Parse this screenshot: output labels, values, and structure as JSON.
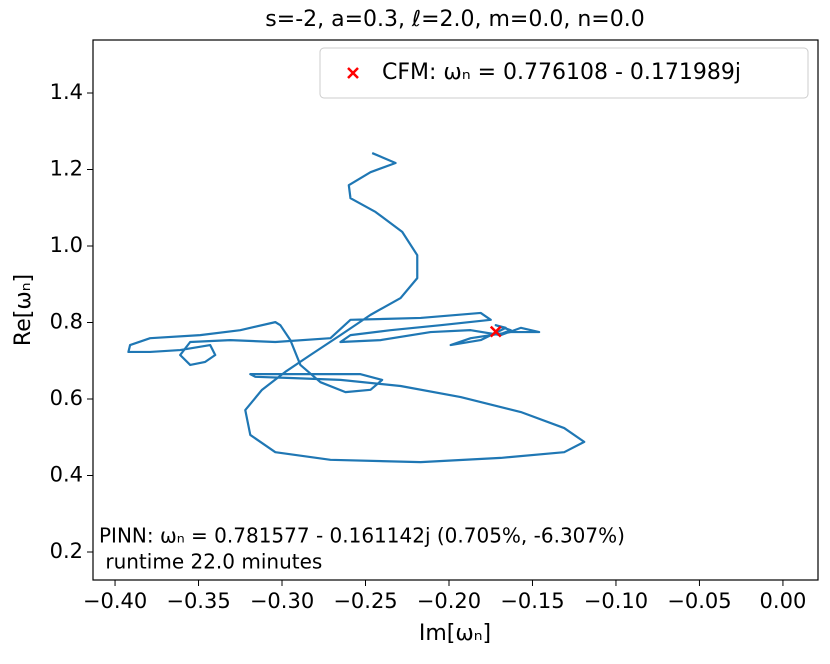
{
  "chart_data": {
    "type": "line",
    "title": "s=-2, a=0.3, ℓ=2.0, m=0.0, n=0.0",
    "x_label": "Im[ωₙ]",
    "y_label": "Re[ωₙ]",
    "xlim": [
      -0.4132,
      0.021
    ],
    "ylim": [
      0.1268,
      1.5386
    ],
    "xticks": [
      {
        "value": -0.4,
        "label": "−0.40"
      },
      {
        "value": -0.35,
        "label": "−0.35"
      },
      {
        "value": -0.3,
        "label": "−0.30"
      },
      {
        "value": -0.25,
        "label": "−0.25"
      },
      {
        "value": -0.2,
        "label": "−0.20"
      },
      {
        "value": -0.15,
        "label": "−0.15"
      },
      {
        "value": -0.1,
        "label": "−0.10"
      },
      {
        "value": -0.05,
        "label": "−0.05"
      },
      {
        "value": 0,
        "label": "0.00"
      }
    ],
    "yticks": [
      0.2,
      0.4,
      0.6,
      0.8,
      {
        "value": 1,
        "label": "1.0"
      },
      1.2,
      1.4
    ],
    "legend_position": "upper right",
    "series": [
      {
        "type": "line",
        "color": "#1f77b4",
        "x": [
          -0.246,
          -0.232,
          -0.247,
          -0.26,
          -0.259,
          -0.244,
          -0.228,
          -0.219,
          -0.219,
          -0.229,
          -0.247,
          -0.265,
          -0.283,
          -0.298,
          -0.312,
          -0.322,
          -0.319,
          -0.304,
          -0.271,
          -0.217,
          -0.169,
          -0.131,
          -0.119,
          -0.131,
          -0.157,
          -0.193,
          -0.229,
          -0.265,
          -0.295,
          -0.316,
          -0.319,
          -0.289,
          -0.253,
          -0.24,
          -0.247,
          -0.262,
          -0.277,
          -0.289,
          -0.295,
          -0.301,
          -0.304,
          -0.325,
          -0.349,
          -0.379,
          -0.391,
          -0.392,
          -0.379,
          -0.361,
          -0.343,
          -0.34,
          -0.346,
          -0.355,
          -0.361,
          -0.355,
          -0.331,
          -0.304,
          -0.271,
          -0.259,
          -0.217,
          -0.181,
          -0.175,
          -0.205,
          -0.235,
          -0.259,
          -0.265,
          -0.241,
          -0.211,
          -0.187,
          -0.169,
          -0.157,
          -0.146,
          -0.163,
          -0.187,
          -0.199,
          -0.181,
          -0.166,
          -0.172,
          -0.163,
          -0.169
        ],
        "values": [
          1.243,
          1.217,
          1.193,
          1.159,
          1.125,
          1.089,
          1.037,
          0.976,
          0.916,
          0.864,
          0.82,
          0.767,
          0.715,
          0.671,
          0.624,
          0.571,
          0.506,
          0.461,
          0.441,
          0.435,
          0.446,
          0.461,
          0.488,
          0.524,
          0.566,
          0.605,
          0.634,
          0.65,
          0.655,
          0.658,
          0.665,
          0.665,
          0.665,
          0.65,
          0.624,
          0.618,
          0.644,
          0.689,
          0.754,
          0.793,
          0.801,
          0.78,
          0.767,
          0.759,
          0.741,
          0.723,
          0.723,
          0.728,
          0.741,
          0.715,
          0.697,
          0.689,
          0.715,
          0.749,
          0.754,
          0.749,
          0.759,
          0.807,
          0.812,
          0.825,
          0.807,
          0.793,
          0.78,
          0.767,
          0.749,
          0.754,
          0.775,
          0.78,
          0.767,
          0.786,
          0.775,
          0.775,
          0.759,
          0.741,
          0.754,
          0.786,
          0.793,
          0.78,
          0.77
        ]
      },
      {
        "type": "scatter",
        "name": "CFM: ωₙ = 0.776108 - 0.171989j",
        "color": "#ff0000",
        "x": [
          -0.171989
        ],
        "values": [
          0.776108
        ]
      }
    ],
    "annotations": [
      "PINN: ωₙ = 0.781577 - 0.161142j (0.705%, -6.307%)",
      " runtime 22.0 minutes"
    ]
  }
}
